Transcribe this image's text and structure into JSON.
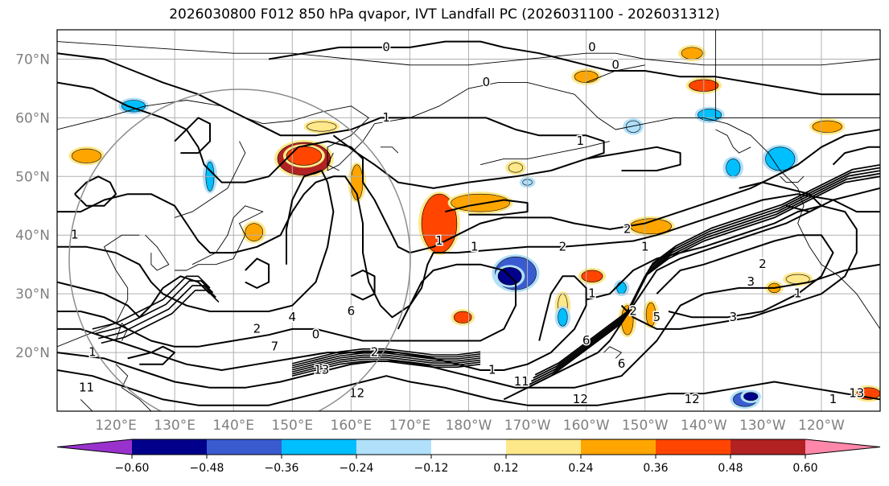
{
  "title": "2026030800 F012 850 hPa qvapor, IVT Landfall PC (2026031100 - 2026031312)",
  "map": {
    "lon_range_east": [
      110,
      250
    ],
    "lat_range": [
      10,
      75
    ],
    "lat_ticks": [
      {
        "value": 70,
        "label": "70°N"
      },
      {
        "value": 60,
        "label": "60°N"
      },
      {
        "value": 50,
        "label": "50°N"
      },
      {
        "value": 40,
        "label": "40°N"
      },
      {
        "value": 30,
        "label": "30°N"
      },
      {
        "value": 20,
        "label": "20°N"
      }
    ],
    "lon_ticks": [
      {
        "value": 120,
        "label": "120°E"
      },
      {
        "value": 130,
        "label": "130°E"
      },
      {
        "value": 140,
        "label": "140°E"
      },
      {
        "value": 150,
        "label": "150°E"
      },
      {
        "value": 160,
        "label": "160°E"
      },
      {
        "value": 170,
        "label": "170°E"
      },
      {
        "value": 180,
        "label": "180°W"
      },
      {
        "value": 190,
        "label": "170°W"
      },
      {
        "value": 200,
        "label": "160°W"
      },
      {
        "value": 210,
        "label": "150°W"
      },
      {
        "value": 220,
        "label": "140°W"
      },
      {
        "value": 230,
        "label": "130°W"
      },
      {
        "value": 240,
        "label": "120°W"
      }
    ],
    "contour_labels": [
      {
        "text": "0",
        "lon": 166,
        "lat": 72
      },
      {
        "text": "0",
        "lon": 201,
        "lat": 72
      },
      {
        "text": "0",
        "lon": 205,
        "lat": 69
      },
      {
        "text": "0",
        "lon": 183,
        "lat": 66
      },
      {
        "text": "1",
        "lon": 166,
        "lat": 60
      },
      {
        "text": "1",
        "lon": 199,
        "lat": 56
      },
      {
        "text": "1",
        "lon": 113,
        "lat": 40
      },
      {
        "text": "1",
        "lon": 175,
        "lat": 39
      },
      {
        "text": "1",
        "lon": 181,
        "lat": 38
      },
      {
        "text": "2",
        "lon": 196,
        "lat": 38
      },
      {
        "text": "2",
        "lon": 207,
        "lat": 41
      },
      {
        "text": "1",
        "lon": 210,
        "lat": 38
      },
      {
        "text": "6",
        "lon": 160,
        "lat": 27
      },
      {
        "text": "4",
        "lon": 150,
        "lat": 26
      },
      {
        "text": "2",
        "lon": 144,
        "lat": 24
      },
      {
        "text": "7",
        "lon": 147,
        "lat": 21
      },
      {
        "text": "1",
        "lon": 116,
        "lat": 20
      },
      {
        "text": "0",
        "lon": 154,
        "lat": 23
      },
      {
        "text": "2",
        "lon": 164,
        "lat": 20
      },
      {
        "text": "13",
        "lon": 155,
        "lat": 17
      },
      {
        "text": "11",
        "lon": 189,
        "lat": 15
      },
      {
        "text": "12",
        "lon": 161,
        "lat": 13
      },
      {
        "text": "12",
        "lon": 199,
        "lat": 12
      },
      {
        "text": "12",
        "lon": 218,
        "lat": 12
      },
      {
        "text": "1",
        "lon": 184,
        "lat": 17
      },
      {
        "text": "11",
        "lon": 115,
        "lat": 14
      },
      {
        "text": "2",
        "lon": 208,
        "lat": 27
      },
      {
        "text": "5",
        "lon": 212,
        "lat": 26
      },
      {
        "text": "3",
        "lon": 225,
        "lat": 26
      },
      {
        "text": "3",
        "lon": 228,
        "lat": 32
      },
      {
        "text": "2",
        "lon": 230,
        "lat": 35
      },
      {
        "text": "1",
        "lon": 236,
        "lat": 30
      },
      {
        "text": "1",
        "lon": 242,
        "lat": 12
      },
      {
        "text": "6",
        "lon": 200,
        "lat": 22
      },
      {
        "text": "6",
        "lon": 206,
        "lat": 18
      },
      {
        "text": "1",
        "lon": 201,
        "lat": 30
      },
      {
        "text": "13",
        "lon": 246,
        "lat": 13
      }
    ]
  },
  "colorbar": {
    "colors": [
      "#9932cc",
      "#00008b",
      "#3a5bd0",
      "#00bfff",
      "#b0e0fa",
      "#ffffff",
      "#ffe88a",
      "#ffa500",
      "#ff4500",
      "#b22222",
      "#ff88aa"
    ],
    "boundaries": [
      -0.6,
      -0.48,
      -0.36,
      -0.24,
      -0.12,
      0.12,
      0.24,
      0.36,
      0.48,
      0.6
    ],
    "tick_labels": [
      "−0.60",
      "−0.48",
      "−0.36",
      "−0.24",
      "−0.12",
      "0.12",
      "0.24",
      "0.36",
      "0.48",
      "0.60"
    ]
  },
  "color_patches": [
    {
      "lon": 152,
      "lat": 53,
      "rx": 4.5,
      "ry": 2.8,
      "value": 0.52
    },
    {
      "lon": 152,
      "lat": 53.5,
      "rx": 3,
      "ry": 1.6,
      "value": 0.42
    },
    {
      "lon": 175,
      "lat": 42,
      "rx": 3,
      "ry": 5,
      "value": 0.42
    },
    {
      "lon": 182,
      "lat": 45.5,
      "rx": 5,
      "ry": 1.5,
      "value": 0.3
    },
    {
      "lon": 161,
      "lat": 49,
      "rx": 1,
      "ry": 3,
      "value": 0.3
    },
    {
      "lon": 115,
      "lat": 53.5,
      "rx": 2.5,
      "ry": 1.2,
      "value": 0.3
    },
    {
      "lon": 143.5,
      "lat": 40.5,
      "rx": 1.5,
      "ry": 1.5,
      "value": 0.3
    },
    {
      "lon": 211,
      "lat": 41.5,
      "rx": 3.5,
      "ry": 1.3,
      "value": 0.3
    },
    {
      "lon": 220,
      "lat": 65.5,
      "rx": 2.5,
      "ry": 1,
      "value": 0.42
    },
    {
      "lon": 200,
      "lat": 67,
      "rx": 2,
      "ry": 1,
      "value": 0.3
    },
    {
      "lon": 218,
      "lat": 71,
      "rx": 1.8,
      "ry": 1,
      "value": 0.3
    },
    {
      "lon": 155,
      "lat": 58.5,
      "rx": 2.5,
      "ry": 0.8,
      "value": 0.18
    },
    {
      "lon": 188,
      "lat": 51.5,
      "rx": 1.2,
      "ry": 0.8,
      "value": 0.18
    },
    {
      "lon": 179,
      "lat": 26,
      "rx": 1.5,
      "ry": 1,
      "value": 0.42
    },
    {
      "lon": 201,
      "lat": 33,
      "rx": 1.8,
      "ry": 1,
      "value": 0.42
    },
    {
      "lon": 207,
      "lat": 25.5,
      "rx": 1,
      "ry": 2.5,
      "value": 0.3
    },
    {
      "lon": 211,
      "lat": 26.5,
      "rx": 0.8,
      "ry": 2,
      "value": 0.3
    },
    {
      "lon": 196,
      "lat": 28,
      "rx": 0.8,
      "ry": 2,
      "value": 0.18
    },
    {
      "lon": 236,
      "lat": 32.5,
      "rx": 2,
      "ry": 0.8,
      "value": 0.18
    },
    {
      "lon": 232,
      "lat": 31,
      "rx": 1,
      "ry": 0.8,
      "value": 0.3
    },
    {
      "lon": 241,
      "lat": 58.5,
      "rx": 2.5,
      "ry": 1,
      "value": 0.3
    },
    {
      "lon": 248,
      "lat": 13,
      "rx": 2,
      "ry": 1,
      "value": 0.42
    },
    {
      "lon": 188,
      "lat": 33.5,
      "rx": 3.5,
      "ry": 2.8,
      "value": -0.42
    },
    {
      "lon": 187,
      "lat": 33,
      "rx": 2,
      "ry": 1.5,
      "value": -0.52
    },
    {
      "lon": 136,
      "lat": 50,
      "rx": 0.7,
      "ry": 2.5,
      "value": -0.3
    },
    {
      "lon": 221,
      "lat": 60.5,
      "rx": 2,
      "ry": 1,
      "value": -0.3
    },
    {
      "lon": 233,
      "lat": 53,
      "rx": 2.5,
      "ry": 2,
      "value": -0.3
    },
    {
      "lon": 225,
      "lat": 51.5,
      "rx": 1.2,
      "ry": 1.5,
      "value": -0.3
    },
    {
      "lon": 208,
      "lat": 58.5,
      "rx": 1.2,
      "ry": 1,
      "value": -0.18
    },
    {
      "lon": 123,
      "lat": 62,
      "rx": 2,
      "ry": 1,
      "value": -0.3
    },
    {
      "lon": 206,
      "lat": 31,
      "rx": 0.8,
      "ry": 1,
      "value": -0.3
    },
    {
      "lon": 196,
      "lat": 26,
      "rx": 0.8,
      "ry": 1.5,
      "value": -0.3
    },
    {
      "lon": 227,
      "lat": 12,
      "rx": 2,
      "ry": 1.2,
      "value": -0.42
    },
    {
      "lon": 228,
      "lat": 12.5,
      "rx": 1.2,
      "ry": 0.7,
      "value": -0.52
    },
    {
      "lon": 190,
      "lat": 49,
      "rx": 0.8,
      "ry": 0.5,
      "value": -0.18
    }
  ]
}
